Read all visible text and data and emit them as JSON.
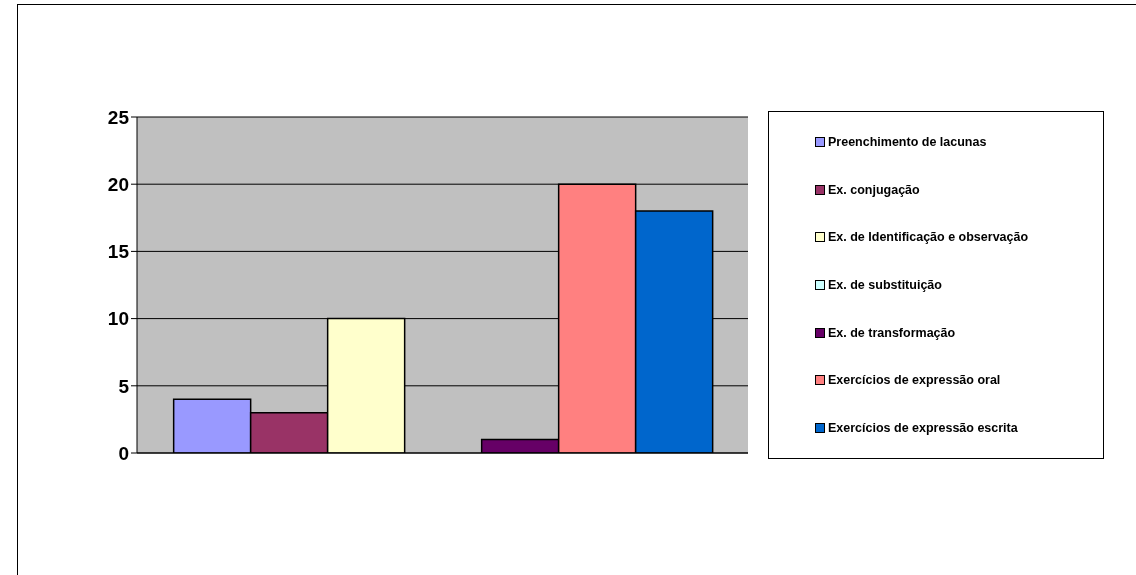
{
  "chart_data": {
    "type": "bar",
    "categories": [
      null
    ],
    "series": [
      {
        "name": "Preenchimento de lacunas",
        "color": "#9999ff",
        "values": [
          4
        ]
      },
      {
        "name": "Ex. conjugação",
        "color": "#993366",
        "values": [
          3
        ]
      },
      {
        "name": "Ex. de Identificação e observação",
        "color": "#ffffcc",
        "values": [
          10
        ]
      },
      {
        "name": "Ex. de substituição",
        "color": "#ccffff",
        "values": [
          0
        ]
      },
      {
        "name": "Ex. de transformação",
        "color": "#660066",
        "values": [
          1
        ]
      },
      {
        "name": "Exercícios de expressão oral",
        "color": "#ff8080",
        "values": [
          20
        ]
      },
      {
        "name": "Exercícios de expressão escrita",
        "color": "#0066cc",
        "values": [
          18
        ]
      }
    ],
    "ylim": [
      0,
      25
    ],
    "yticks": [
      0,
      5,
      10,
      15,
      20,
      25
    ],
    "grid": "y",
    "legend": "right"
  }
}
